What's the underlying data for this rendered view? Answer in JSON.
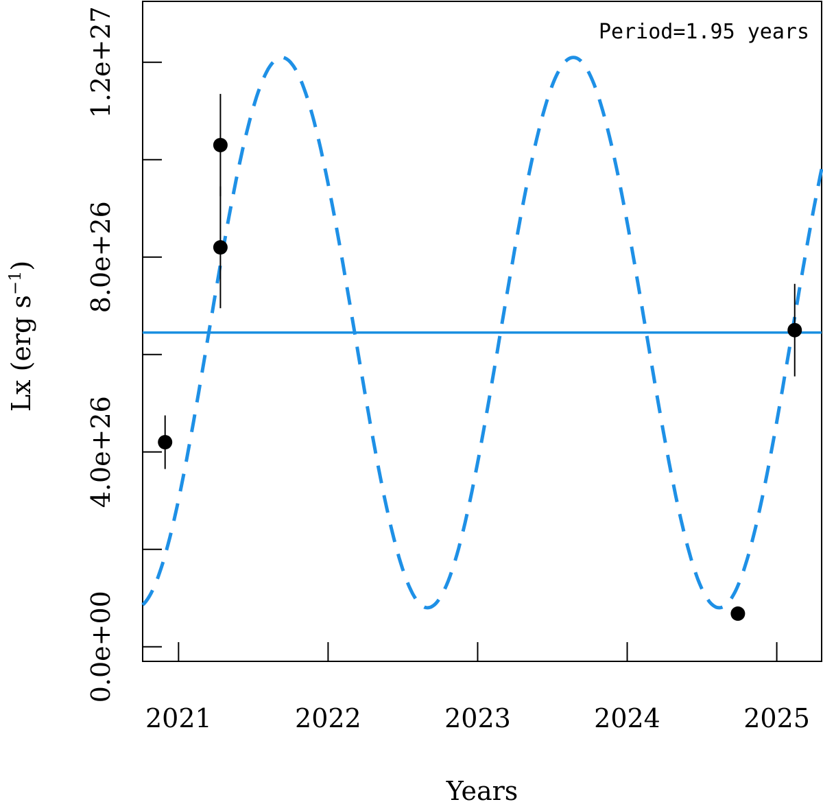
{
  "chart_data": {
    "type": "scatter",
    "title": "",
    "xlabel": "Years",
    "ylabel_main": "Lx (erg s",
    "ylabel_sup": "−1",
    "ylabel_close": ")",
    "xlim": [
      2020.76,
      2025.3
    ],
    "ylim": [
      -3e+25,
      1.325e+27
    ],
    "x_ticks": [
      2021,
      2022,
      2023,
      2024,
      2025
    ],
    "x_tick_labels": [
      "2021",
      "2022",
      "2023",
      "2024",
      "2025"
    ],
    "y_ticks": [
      0,
      2e+26,
      4e+26,
      6e+26,
      8e+26,
      1e+27,
      1.2e+27
    ],
    "y_tick_labels": [
      {
        "value": 0,
        "label": "0.0e+00"
      },
      {
        "value": 4e+26,
        "label": "4.0e+26"
      },
      {
        "value": 8e+26,
        "label": "8.0e+26"
      },
      {
        "value": 1.2e+27,
        "label": "1.2e+27"
      }
    ],
    "annotation": "Period=1.95 years",
    "points": [
      {
        "x": 2020.91,
        "y": 4.2e+26,
        "err": 5.5e+25
      },
      {
        "x": 2021.28,
        "y": 1.03e+27,
        "err": 1.05e+26
      },
      {
        "x": 2021.28,
        "y": 8.2e+26,
        "err": 1.25e+26
      },
      {
        "x": 2024.74,
        "y": 6.8e+25,
        "err": 1e+25
      },
      {
        "x": 2025.12,
        "y": 6.5e+26,
        "err": 9.5e+25
      }
    ],
    "mean_line": {
      "y": 6.45e+26,
      "color": "#1a8fe0"
    },
    "model": {
      "style": "dashed",
      "color": "#1e90e6",
      "period_years": 1.95,
      "mean": 6.45e+26,
      "amplitude": 5.65e+26,
      "peak_x": 2021.69
    },
    "grid": false,
    "legend": "none"
  }
}
